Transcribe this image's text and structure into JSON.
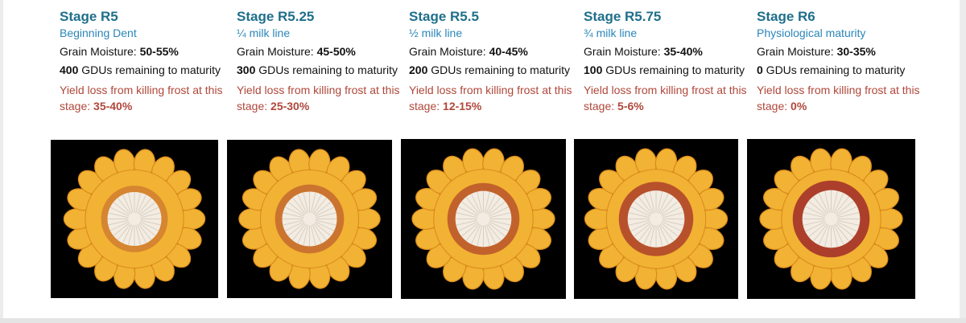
{
  "stages": [
    {
      "title": "Stage R5",
      "subtitle": "Beginning Dent",
      "moisture_label": "Grain Moisture: ",
      "moisture_value": "50-55%",
      "gdu_value": "400",
      "gdu_text": " GDUs remaining to maturity",
      "loss_text": "Yield loss from killing frost at this stage: ",
      "loss_value": "35-40%"
    },
    {
      "title": "Stage R5.25",
      "subtitle": "¼ milk line",
      "moisture_label": "Grain Moisture: ",
      "moisture_value": "45-50%",
      "gdu_value": "300",
      "gdu_text": " GDUs remaining to maturity",
      "loss_text": "Yield loss from killing frost at this stage: ",
      "loss_value": "25-30%"
    },
    {
      "title": "Stage R5.5",
      "subtitle": "½ milk line",
      "moisture_label": "Grain Moisture: ",
      "moisture_value": "40-45%",
      "gdu_value": "200",
      "gdu_text": " GDUs remaining to maturity",
      "loss_text": "Yield loss from killing frost at this stage: ",
      "loss_value": "12-15%"
    },
    {
      "title": "Stage R5.75",
      "subtitle": "¾ milk line",
      "moisture_label": "Grain Moisture: ",
      "moisture_value": "35-40%",
      "gdu_value": "100",
      "gdu_text": " GDUs remaining to maturity",
      "loss_text": "Yield loss from killing frost at this stage: ",
      "loss_value": "5-6%"
    },
    {
      "title": "Stage R6",
      "subtitle": "Physiological maturity",
      "moisture_label": "Grain Moisture: ",
      "moisture_value": "30-35%",
      "gdu_value": "0",
      "gdu_text": " GDUs remaining to maturity",
      "loss_text": "Yield loss from killing frost at this stage: ",
      "loss_value": "0%"
    }
  ],
  "images": [
    {
      "name": "corn-cross-section-r5",
      "milk_line_fraction": 0.0
    },
    {
      "name": "corn-cross-section-r5-25",
      "milk_line_fraction": 0.25
    },
    {
      "name": "corn-cross-section-r5-5",
      "milk_line_fraction": 0.5
    },
    {
      "name": "corn-cross-section-r5-75",
      "milk_line_fraction": 0.75
    },
    {
      "name": "corn-cross-section-r6",
      "milk_line_fraction": 1.0
    }
  ],
  "colors": {
    "title": "#1f6f8b",
    "subtitle": "#2a86b8",
    "loss": "#b0473a",
    "kernel": "#f2b233",
    "kernel_dark": "#d88a1c",
    "cob_white": "#f3ece2",
    "chaff_red": "#a4322a"
  }
}
